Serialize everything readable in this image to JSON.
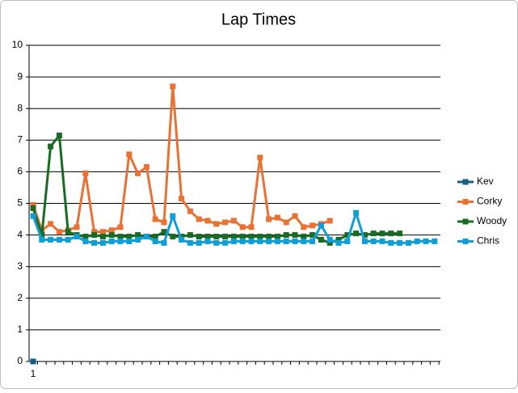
{
  "chart_data": {
    "type": "line",
    "title": "Lap Times",
    "categories": [
      "1",
      null,
      null,
      null,
      null,
      null,
      null,
      null,
      null,
      null,
      null,
      null,
      null,
      null,
      null,
      null,
      null,
      null,
      null,
      null,
      null,
      null,
      null,
      null,
      null,
      null,
      null,
      null,
      null,
      null,
      null,
      null,
      null,
      null,
      null,
      null,
      null,
      null,
      null,
      null,
      null,
      null,
      null,
      null,
      null,
      null,
      null
    ],
    "series": [
      {
        "name": "Kev",
        "color": "#156082",
        "values": [
          0,
          null,
          null,
          null,
          null,
          null,
          null,
          null,
          null,
          null,
          null,
          null,
          null,
          null,
          null,
          null,
          null,
          null,
          null,
          null,
          null,
          null,
          null,
          null,
          null,
          null,
          null,
          null,
          null,
          null,
          null,
          null,
          null,
          null,
          null,
          null,
          null,
          null,
          null,
          null,
          null,
          null,
          null,
          null,
          null,
          null,
          null
        ]
      },
      {
        "name": "Corky",
        "color": "#e97132",
        "values": [
          4.95,
          4.15,
          4.35,
          4.1,
          4.15,
          4.25,
          5.95,
          4.1,
          4.1,
          4.15,
          4.25,
          6.55,
          5.95,
          6.15,
          4.5,
          4.4,
          8.7,
          5.15,
          4.75,
          4.5,
          4.45,
          4.35,
          4.4,
          4.45,
          4.25,
          4.25,
          6.45,
          4.5,
          4.55,
          4.4,
          4.6,
          4.25,
          4.3,
          4.35,
          4.45,
          null,
          null,
          null,
          null,
          null,
          null,
          null,
          null,
          null,
          null,
          null,
          null
        ]
      },
      {
        "name": "Woody",
        "color": "#196b24",
        "values": [
          4.85,
          4.0,
          6.8,
          7.15,
          4.1,
          4.0,
          3.95,
          4.0,
          3.95,
          4.0,
          3.95,
          3.95,
          4.0,
          3.95,
          3.95,
          4.1,
          3.95,
          3.95,
          4.0,
          3.95,
          3.95,
          3.95,
          3.95,
          3.95,
          3.95,
          3.95,
          3.95,
          3.95,
          3.95,
          4.0,
          4.0,
          3.95,
          4.0,
          3.85,
          3.75,
          3.85,
          4.0,
          4.05,
          4.0,
          4.05,
          4.05,
          4.05,
          4.05,
          null,
          null,
          null,
          null
        ]
      },
      {
        "name": "Chris",
        "color": "#0f9ed5",
        "values": [
          4.6,
          3.85,
          3.85,
          3.85,
          3.85,
          3.95,
          3.8,
          3.75,
          3.75,
          3.8,
          3.8,
          3.8,
          3.85,
          3.95,
          3.8,
          3.75,
          4.6,
          3.85,
          3.75,
          3.75,
          3.8,
          3.75,
          3.75,
          3.8,
          3.8,
          3.8,
          3.8,
          3.8,
          3.8,
          3.8,
          3.8,
          3.8,
          3.8,
          4.3,
          3.85,
          3.75,
          3.8,
          4.7,
          3.8,
          3.8,
          3.8,
          3.75,
          3.75,
          3.75,
          3.8,
          3.8,
          3.8
        ]
      }
    ],
    "ylim": [
      0,
      10
    ],
    "yticks": [
      0,
      1,
      2,
      3,
      4,
      5,
      6,
      7,
      8,
      9,
      10
    ],
    "grid": true,
    "legend": "right"
  }
}
